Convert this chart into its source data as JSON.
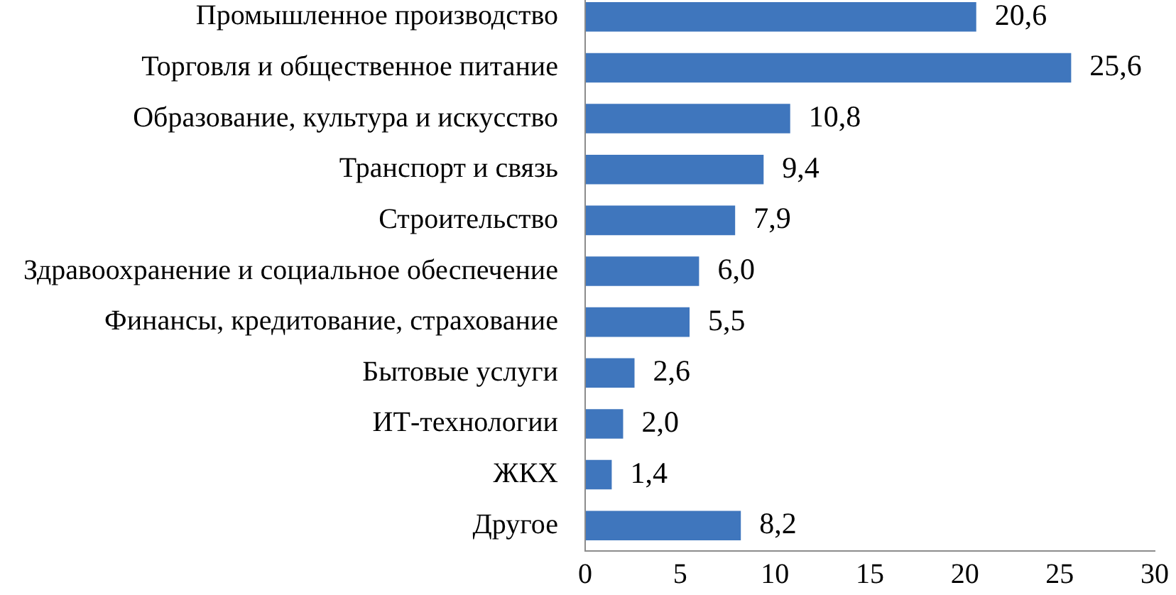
{
  "chart_data": {
    "type": "bar",
    "orientation": "horizontal",
    "categories": [
      "Промышленное производство",
      "Торговля и общественное питание",
      "Образование, культура и искусство",
      "Транспорт и связь",
      "Строительство",
      "Здравоохранение и социальное обеспечение",
      "Финансы, кредитование, страхование",
      "Бытовые услуги",
      "ИТ-технологии",
      "ЖКХ",
      "Другое"
    ],
    "values": [
      20.6,
      25.6,
      10.8,
      9.4,
      7.9,
      6.0,
      5.5,
      2.6,
      2.0,
      1.4,
      8.2
    ],
    "value_labels": [
      "20,6",
      "25,6",
      "10,8",
      "9,4",
      "7,9",
      "6,0",
      "5,5",
      "2,6",
      "2,0",
      "1,4",
      "8,2"
    ],
    "color": "#3f76bd",
    "xlim": [
      0,
      30
    ],
    "xticks": [
      0,
      5,
      10,
      15,
      20,
      25,
      30
    ]
  }
}
